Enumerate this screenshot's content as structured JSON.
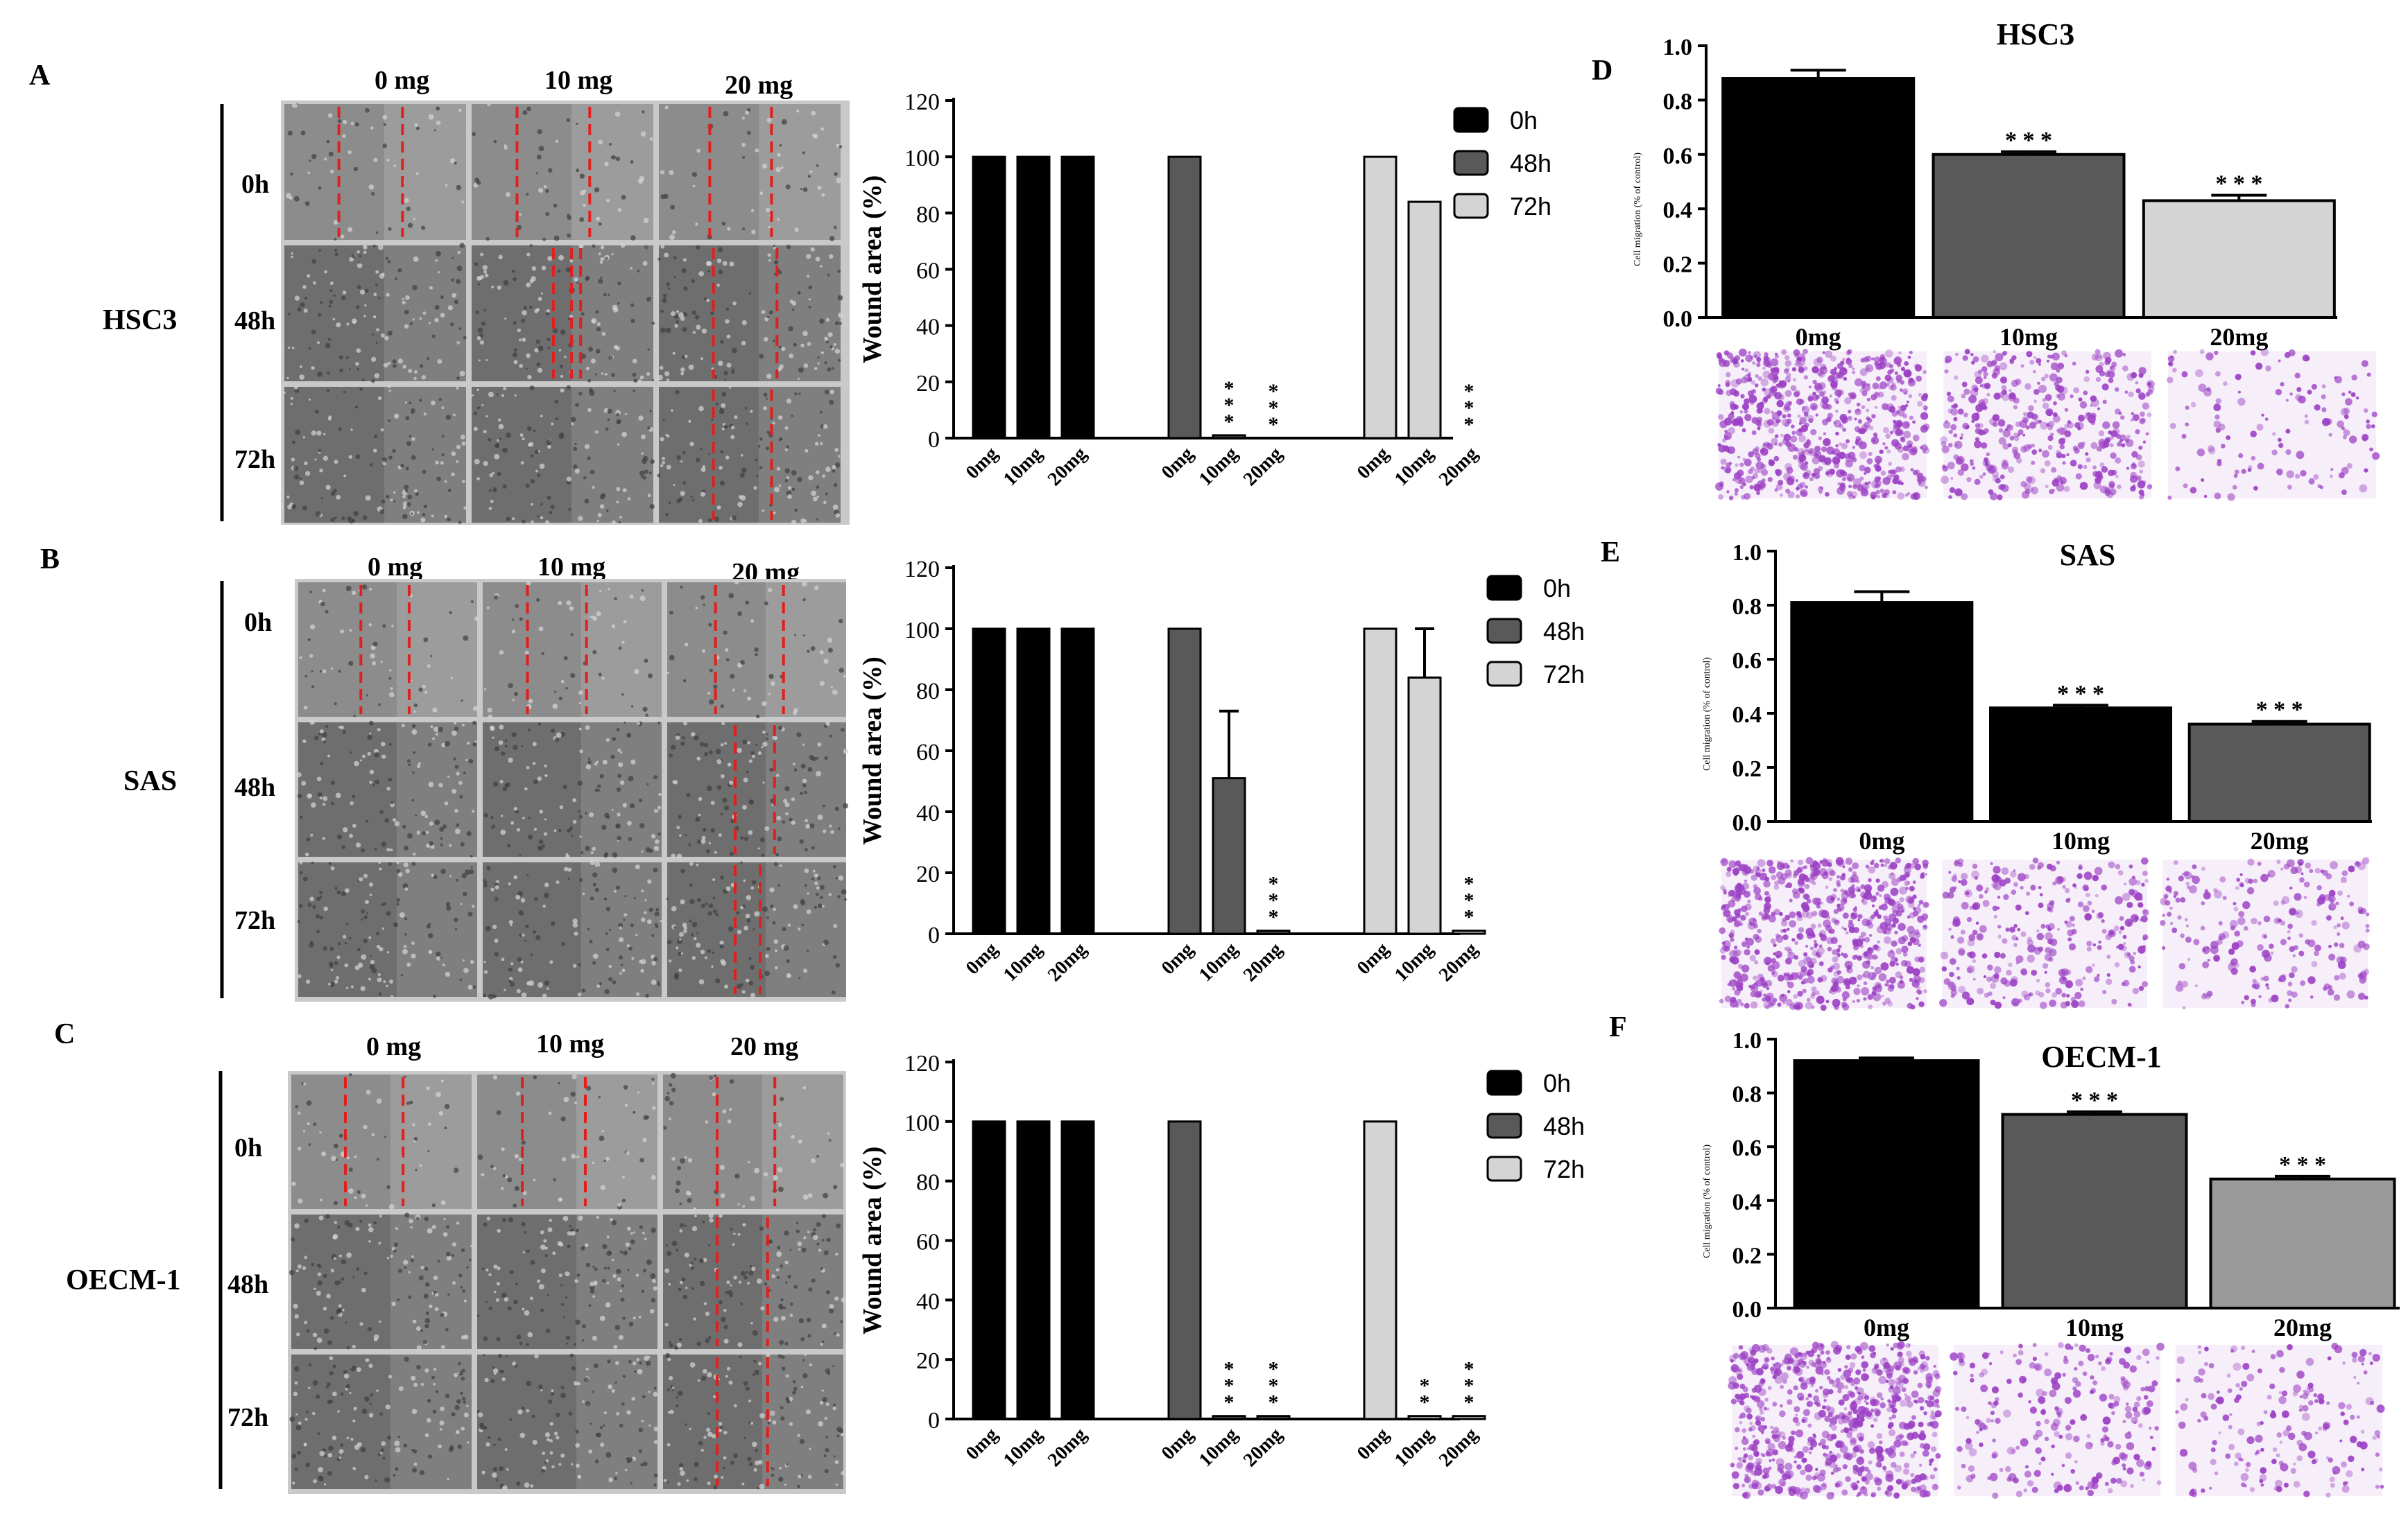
{
  "panels": [
    {
      "letter": "A",
      "cell_line": "HSC3",
      "dose_headers": [
        "0 mg",
        "10 mg",
        "20 mg"
      ],
      "time_labels": [
        "0h",
        "48h",
        "72h"
      ],
      "scratch_line_color": "#e0201e"
    },
    {
      "letter": "B",
      "cell_line": "SAS",
      "dose_headers": [
        "0 mg",
        "10 mg",
        "20 mg"
      ],
      "time_labels": [
        "0h",
        "48h",
        "72h"
      ],
      "scratch_line_color": "#e0201e"
    },
    {
      "letter": "C",
      "cell_line": "OECM-1",
      "dose_headers": [
        "0 mg",
        "10 mg",
        "20 mg"
      ],
      "time_labels": [
        "0h",
        "48h",
        "72h"
      ],
      "scratch_line_color": "#e0201e"
    }
  ],
  "migration_panels": [
    {
      "letter": "D",
      "stain_color": "#9b3fc4"
    },
    {
      "letter": "E",
      "stain_color": "#9b3fc4"
    },
    {
      "letter": "F",
      "stain_color": "#9b3fc4"
    }
  ],
  "chart_data": [
    {
      "id": "A-wound",
      "type": "bar",
      "title": "",
      "ylabel": "Wound area (%)",
      "ylim": [
        0,
        120
      ],
      "yticks": [
        0,
        20,
        40,
        60,
        80,
        100,
        120
      ],
      "categories": [
        "0mg",
        "10mg",
        "20mg"
      ],
      "legend_position": "top-right",
      "series": [
        {
          "name": "0h",
          "color": "#000000",
          "values": [
            100,
            100,
            100
          ],
          "errors": [
            0,
            0,
            0
          ],
          "sig": [
            "",
            "",
            ""
          ]
        },
        {
          "name": "48h",
          "color": "#595959",
          "values": [
            100,
            1,
            0
          ],
          "errors": [
            0,
            0,
            0
          ],
          "sig": [
            "",
            "***",
            "***"
          ]
        },
        {
          "name": "72h",
          "color": "#d4d4d4",
          "values": [
            100,
            84,
            0
          ],
          "errors": [
            0,
            0,
            0
          ],
          "sig": [
            "",
            "",
            "***"
          ]
        }
      ]
    },
    {
      "id": "B-wound",
      "type": "bar",
      "title": "",
      "ylabel": "Wound area (%)",
      "ylim": [
        0,
        120
      ],
      "yticks": [
        0,
        20,
        40,
        60,
        80,
        100,
        120
      ],
      "categories": [
        "0mg",
        "10mg",
        "20mg"
      ],
      "legend_position": "top-right",
      "series": [
        {
          "name": "0h",
          "color": "#000000",
          "values": [
            100,
            100,
            100
          ],
          "errors": [
            0,
            0,
            0
          ],
          "sig": [
            "",
            "",
            ""
          ]
        },
        {
          "name": "48h",
          "color": "#595959",
          "values": [
            100,
            51,
            1
          ],
          "errors": [
            0,
            22,
            0
          ],
          "sig": [
            "",
            "",
            "***"
          ]
        },
        {
          "name": "72h",
          "color": "#d4d4d4",
          "values": [
            100,
            84,
            1
          ],
          "errors": [
            0,
            16,
            0
          ],
          "sig": [
            "",
            "",
            "***"
          ]
        }
      ]
    },
    {
      "id": "C-wound",
      "type": "bar",
      "title": "",
      "ylabel": "Wound area (%)",
      "ylim": [
        0,
        120
      ],
      "yticks": [
        0,
        20,
        40,
        60,
        80,
        100,
        120
      ],
      "categories": [
        "0mg",
        "10mg",
        "20mg"
      ],
      "legend_position": "top-right",
      "series": [
        {
          "name": "0h",
          "color": "#000000",
          "values": [
            100,
            100,
            100
          ],
          "errors": [
            0,
            0,
            0
          ],
          "sig": [
            "",
            "",
            ""
          ]
        },
        {
          "name": "48h",
          "color": "#595959",
          "values": [
            100,
            1,
            1
          ],
          "errors": [
            0,
            0,
            0
          ],
          "sig": [
            "",
            "***",
            "***"
          ]
        },
        {
          "name": "72h",
          "color": "#d4d4d4",
          "values": [
            100,
            1,
            1
          ],
          "errors": [
            0,
            0,
            0
          ],
          "sig": [
            "",
            "**",
            "***"
          ]
        }
      ]
    },
    {
      "id": "D-migration",
      "type": "bar",
      "title": "HSC3",
      "ylabel": "Cell migration (% of control)",
      "ylim": [
        0,
        1.0
      ],
      "yticks": [
        "0.0",
        "0.2",
        "0.4",
        "0.6",
        "0.8",
        "1.0"
      ],
      "categories": [
        "0mg",
        "10mg",
        "20mg"
      ],
      "values": [
        0.88,
        0.6,
        0.43
      ],
      "errors": [
        0.03,
        0.01,
        0.02
      ],
      "colors": [
        "#000000",
        "#595959",
        "#d4d4d4"
      ],
      "sig": [
        "",
        "* * *",
        "* * *"
      ]
    },
    {
      "id": "E-migration",
      "type": "bar",
      "title": "SAS",
      "ylabel": "Cell migration (% of control)",
      "ylim": [
        0,
        1.0
      ],
      "yticks": [
        "0.0",
        "0.2",
        "0.4",
        "0.6",
        "0.8",
        "1.0"
      ],
      "categories": [
        "0mg",
        "10mg",
        "20mg"
      ],
      "values": [
        0.81,
        0.42,
        0.36
      ],
      "errors": [
        0.04,
        0.01,
        0.01
      ],
      "colors": [
        "#000000",
        "#000000",
        "#595959"
      ],
      "sig": [
        "",
        "* * *",
        "* * *"
      ]
    },
    {
      "id": "F-migration",
      "type": "bar",
      "title": "OECM-1",
      "ylabel": "Cell migration (% of control)",
      "ylim": [
        0,
        1.0
      ],
      "yticks": [
        "0.0",
        "0.2",
        "0.4",
        "0.6",
        "0.8",
        "1.0"
      ],
      "categories": [
        "0mg",
        "10mg",
        "20mg"
      ],
      "values": [
        0.92,
        0.72,
        0.48
      ],
      "errors": [
        0.01,
        0.01,
        0.01
      ],
      "colors": [
        "#000000",
        "#595959",
        "#9a9a9a"
      ],
      "sig": [
        "",
        "* * *",
        "* * *"
      ]
    }
  ]
}
